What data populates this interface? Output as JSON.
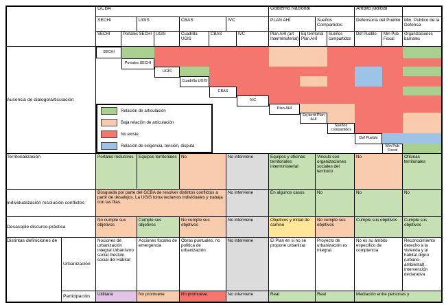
{
  "colors": {
    "green": "#a9d08e",
    "light_green": "#c6e0b4",
    "peach": "#f8cbad",
    "red": "#f5756f",
    "blue": "#9dc3e6",
    "gray": "#dcdcdc",
    "yellow": "#ffe699",
    "pink": "#e2c4e6",
    "white": "#ffffff"
  },
  "header": {
    "groups": [
      {
        "label": "GCBA",
        "from": 0,
        "to": 3
      },
      {
        "label": "Gobierno Nacional",
        "from": 4,
        "to": 5
      },
      {
        "label": "Ambito judicial",
        "from": 6,
        "to": 6
      },
      {
        "label": "",
        "from": 7,
        "to": 7
      }
    ],
    "agencies": [
      "SECHI",
      "UGIS",
      "CBAS",
      "IVC",
      "PLAN AHÍ",
      "Sueños Compartidos",
      "Defensoría del Pueblo",
      "Min. Publico de la Defensa"
    ],
    "units": [
      "SECHI",
      "Portales SECHI",
      "UGIS",
      "Cuadrilla UGIS",
      "CBAS",
      "IVC",
      "Plan AHÍ (art Interministerial)",
      "Eq territorial Plan AHÍ",
      "Sueños compartidos",
      "Def Pueblo",
      "Min Pub Fiscal",
      "Organizaciones barriales"
    ]
  },
  "matrix": {
    "row_label": "Ausencia de dialogo/articulación",
    "rows": [
      {
        "label": "SECHI",
        "cells": [
          "green",
          "red",
          "red",
          "red",
          "red",
          "peach",
          "peach",
          "red",
          "red",
          "red",
          "green"
        ]
      },
      {
        "label": "Portales SECHI",
        "cells": [
          "red",
          "red",
          "red",
          "red",
          "peach",
          "peach",
          "red",
          "red",
          "red",
          "red"
        ]
      },
      {
        "label": "UGIS",
        "cells": [
          "green",
          "red",
          "red",
          "red",
          "red",
          "red",
          "blue",
          "red",
          "green"
        ]
      },
      {
        "label": "Cuadrilla UGIS",
        "cells": [
          "red",
          "red",
          "red",
          "peach",
          "red",
          "blue",
          "red",
          "red"
        ]
      },
      {
        "label": "CBAS",
        "cells": [
          "red",
          "red",
          "red",
          "red",
          "red",
          "red",
          "green"
        ]
      },
      {
        "label": "IVC",
        "cells": [
          "red",
          "red",
          "red",
          "red",
          "red",
          "red"
        ]
      },
      {
        "label": "Plan AHÍ",
        "cells": [
          "peach",
          "peach",
          "red",
          "red",
          "red"
        ]
      },
      {
        "label": "Eq territ Plan AHÍ",
        "cells": [
          "peach",
          "red",
          "red",
          "peach"
        ]
      },
      {
        "label": "Sueños compartidos",
        "cells": [
          "red",
          "red",
          "peach"
        ]
      },
      {
        "label": "Def Pueblo",
        "cells": [
          "blue",
          "blue"
        ]
      },
      {
        "label": "Min Pub Fiscal",
        "cells": [
          "green"
        ]
      }
    ]
  },
  "legend": {
    "items": [
      {
        "color": "green",
        "label": "Relación de articulación"
      },
      {
        "color": "peach",
        "label": "Baja relación de articulación"
      },
      {
        "color": "red",
        "label": "No existe"
      },
      {
        "color": "blue",
        "label": "Relación de exigencia, tensión, disputa"
      }
    ]
  },
  "row_labels": {
    "definitions_group": "Distintas definiciones de"
  },
  "sections": [
    {
      "id": "territorializacion",
      "label": "Territorialización",
      "cells": [
        {
          "text": "Portales Inclusivos",
          "color": "light_green",
          "span": 1
        },
        {
          "text": "Equipos territoriales",
          "color": "light_green",
          "span": 1
        },
        {
          "text": "No",
          "color": "peach",
          "span": 1
        },
        {
          "text": "No interviene",
          "color": "gray",
          "span": 1
        },
        {
          "text": "Equipos y oficinas territoriales interministerial",
          "color": "light_green",
          "span": 1
        },
        {
          "text": "Vinculo con organizaciones sociales del territorio",
          "color": "light_green",
          "span": 1
        },
        {
          "text": "No",
          "color": "peach",
          "span": 1
        },
        {
          "text": "Oficinas territoriales",
          "color": "light_green",
          "span": 1
        }
      ]
    },
    {
      "id": "individualizacion",
      "label": "Individualización resolución conflictos",
      "cells": [
        {
          "text": "Búsqueda por parte del GCBA de resolver distintos conflictos a partir de desalojos. La UGIS toma reclamos individuales y trabaja con las flias.",
          "color": "peach",
          "span": 3
        },
        {
          "text": "No interviene",
          "color": "gray",
          "span": 1
        },
        {
          "text": "En algunos casos",
          "color": "light_green",
          "span": 1
        },
        {
          "text": "No",
          "color": "light_green",
          "span": 1
        },
        {
          "text": "No",
          "color": "light_green",
          "span": 1
        },
        {
          "text": "No",
          "color": "light_green",
          "span": 1
        }
      ]
    },
    {
      "id": "desacople",
      "label": "Desacople discurso-práctica",
      "cells": [
        {
          "text": "No cumple sus objetivos",
          "color": "peach",
          "span": 1
        },
        {
          "text": "Cumple sus objetivos",
          "color": "light_green",
          "span": 1
        },
        {
          "text": "No cumple sus objetivos",
          "color": "peach",
          "span": 1
        },
        {
          "text": "No interviene",
          "color": "gray",
          "span": 1
        },
        {
          "text": "Objetivos y mitad de camino",
          "color": "yellow",
          "span": 1
        },
        {
          "text": "No cumple sus objetivos",
          "color": "peach",
          "span": 1
        },
        {
          "text": "Cumple sus objetivos",
          "color": "light_green",
          "span": 1
        },
        {
          "text": "Cumple sus objetivos",
          "color": "light_green",
          "span": 1
        }
      ]
    },
    {
      "id": "urbanizacion",
      "label": "Urbanización",
      "cells": [
        {
          "text": "Nociones de urbanización integral Urbanismo social Gestión social del Hábitat",
          "color": "white",
          "span": 1
        },
        {
          "text": "Acciones focales de emergencia",
          "color": "white",
          "span": 1
        },
        {
          "text": "Obras puntuales, no política de urbanización",
          "color": "white",
          "span": 1
        },
        {
          "text": "No interviene",
          "color": "gray",
          "span": 1
        },
        {
          "text": "El Plan en si no se propone urbanizar",
          "color": "white",
          "span": 1
        },
        {
          "text": "Proyecto de urbanización es integral.",
          "color": "white",
          "span": 1
        },
        {
          "text": "No es su ámbito específico de comptencia",
          "color": "white",
          "span": 1
        },
        {
          "text": "Reconocimiento derecho a la vivienda y al hábitat digno (urbano-ambiental). Intervención declarativa",
          "color": "white",
          "span": 1
        }
      ]
    },
    {
      "id": "participacion",
      "label": "Participación",
      "cells": [
        {
          "text": "Utilitaria",
          "color": "pink",
          "span": 1
        },
        {
          "text": "No promueve",
          "color": "peach",
          "span": 1
        },
        {
          "text": "No promueve",
          "color": "red",
          "span": 1
        },
        {
          "text": "No interviene",
          "color": "gray",
          "span": 1
        },
        {
          "text": "Real",
          "color": "light_green",
          "span": 1
        },
        {
          "text": "Real",
          "color": "light_green",
          "span": 1
        },
        {
          "text": "Mediación entre personas y",
          "color": "light_green",
          "span": 2
        }
      ]
    }
  ]
}
